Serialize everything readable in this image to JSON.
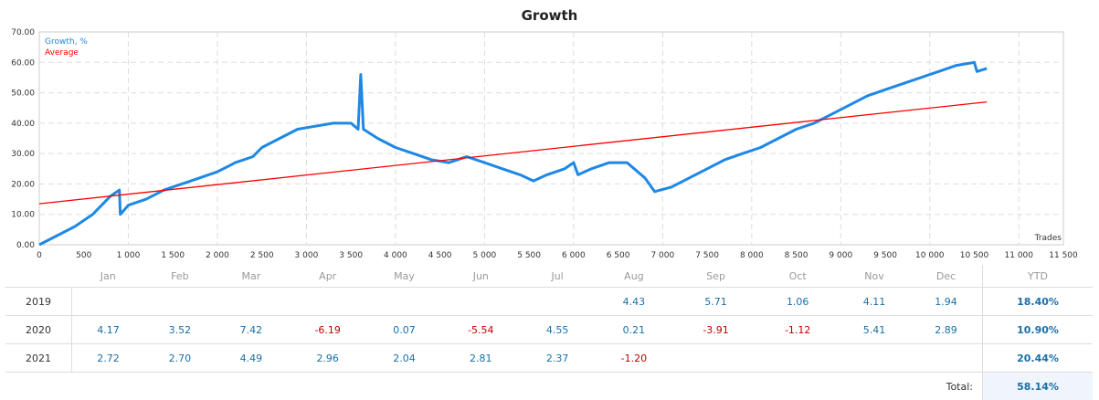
{
  "chart_data": {
    "type": "line",
    "title": "Growth",
    "xlabel": "Trades",
    "ylabel": "",
    "xlim": [
      0,
      11500
    ],
    "ylim": [
      0,
      70
    ],
    "xticks": [
      "0",
      "500",
      "1 000",
      "1 500",
      "2 000",
      "2 500",
      "3 000",
      "3 500",
      "4 000",
      "4 500",
      "5 000",
      "5 500",
      "6 000",
      "6 500",
      "7 000",
      "7 500",
      "8 000",
      "8 500",
      "9 000",
      "9 500",
      "10 000",
      "10 500",
      "11 000",
      "11 500"
    ],
    "yticks": [
      "0.00",
      "10.00",
      "20.00",
      "30.00",
      "40.00",
      "50.00",
      "60.00",
      "70.00"
    ],
    "grid": true,
    "legend_placement": "top-left",
    "series": [
      {
        "name": "Growth, %",
        "color": "#1e88e5",
        "x": [
          0,
          200,
          400,
          500,
          600,
          800,
          900,
          910,
          1000,
          1200,
          1400,
          1600,
          1800,
          2000,
          2200,
          2400,
          2500,
          2700,
          2900,
          3100,
          3300,
          3500,
          3580,
          3610,
          3640,
          3800,
          4000,
          4200,
          4400,
          4600,
          4800,
          5000,
          5200,
          5400,
          5550,
          5700,
          5900,
          6000,
          6050,
          6200,
          6400,
          6600,
          6800,
          6910,
          7100,
          7300,
          7500,
          7700,
          7900,
          8100,
          8300,
          8500,
          8700,
          8900,
          9100,
          9300,
          9500,
          9700,
          9900,
          10100,
          10300,
          10500,
          10530,
          10640
        ],
        "y": [
          0,
          3,
          6,
          8,
          10,
          16,
          18,
          10,
          13,
          15,
          18,
          20,
          22,
          24,
          27,
          29,
          32,
          35,
          38,
          39,
          40,
          40,
          38,
          56,
          38,
          35,
          32,
          30,
          28,
          27,
          29,
          27,
          25,
          23,
          21,
          23,
          25,
          27,
          23,
          25,
          27,
          27,
          22,
          17.5,
          19,
          22,
          25,
          28,
          30,
          32,
          35,
          38,
          40,
          43,
          46,
          49,
          51,
          53,
          55,
          57,
          59,
          60,
          57,
          58
        ]
      },
      {
        "name": "Average",
        "color": "#ff0000",
        "x": [
          0,
          10640
        ],
        "y": [
          13.5,
          47
        ]
      }
    ]
  },
  "table": {
    "headers": [
      "",
      "Jan",
      "Feb",
      "Mar",
      "Apr",
      "May",
      "Jun",
      "Jul",
      "Aug",
      "Sep",
      "Oct",
      "Nov",
      "Dec",
      "YTD"
    ],
    "rows": [
      {
        "year": "2019",
        "values": [
          "",
          "",
          "",
          "",
          "",
          "",
          "",
          "4.43",
          "5.71",
          "1.06",
          "4.11",
          "1.94"
        ],
        "ytd": "18.40%"
      },
      {
        "year": "2020",
        "values": [
          "4.17",
          "3.52",
          "7.42",
          "-6.19",
          "0.07",
          "-5.54",
          "4.55",
          "0.21",
          "-3.91",
          "-1.12",
          "5.41",
          "2.89"
        ],
        "ytd": "10.90%"
      },
      {
        "year": "2021",
        "values": [
          "2.72",
          "2.70",
          "4.49",
          "2.96",
          "2.04",
          "2.81",
          "2.37",
          "-1.20",
          "",
          "",
          "",
          ""
        ],
        "ytd": "20.44%"
      }
    ],
    "total_label": "Total:",
    "total_value": "58.14%"
  }
}
